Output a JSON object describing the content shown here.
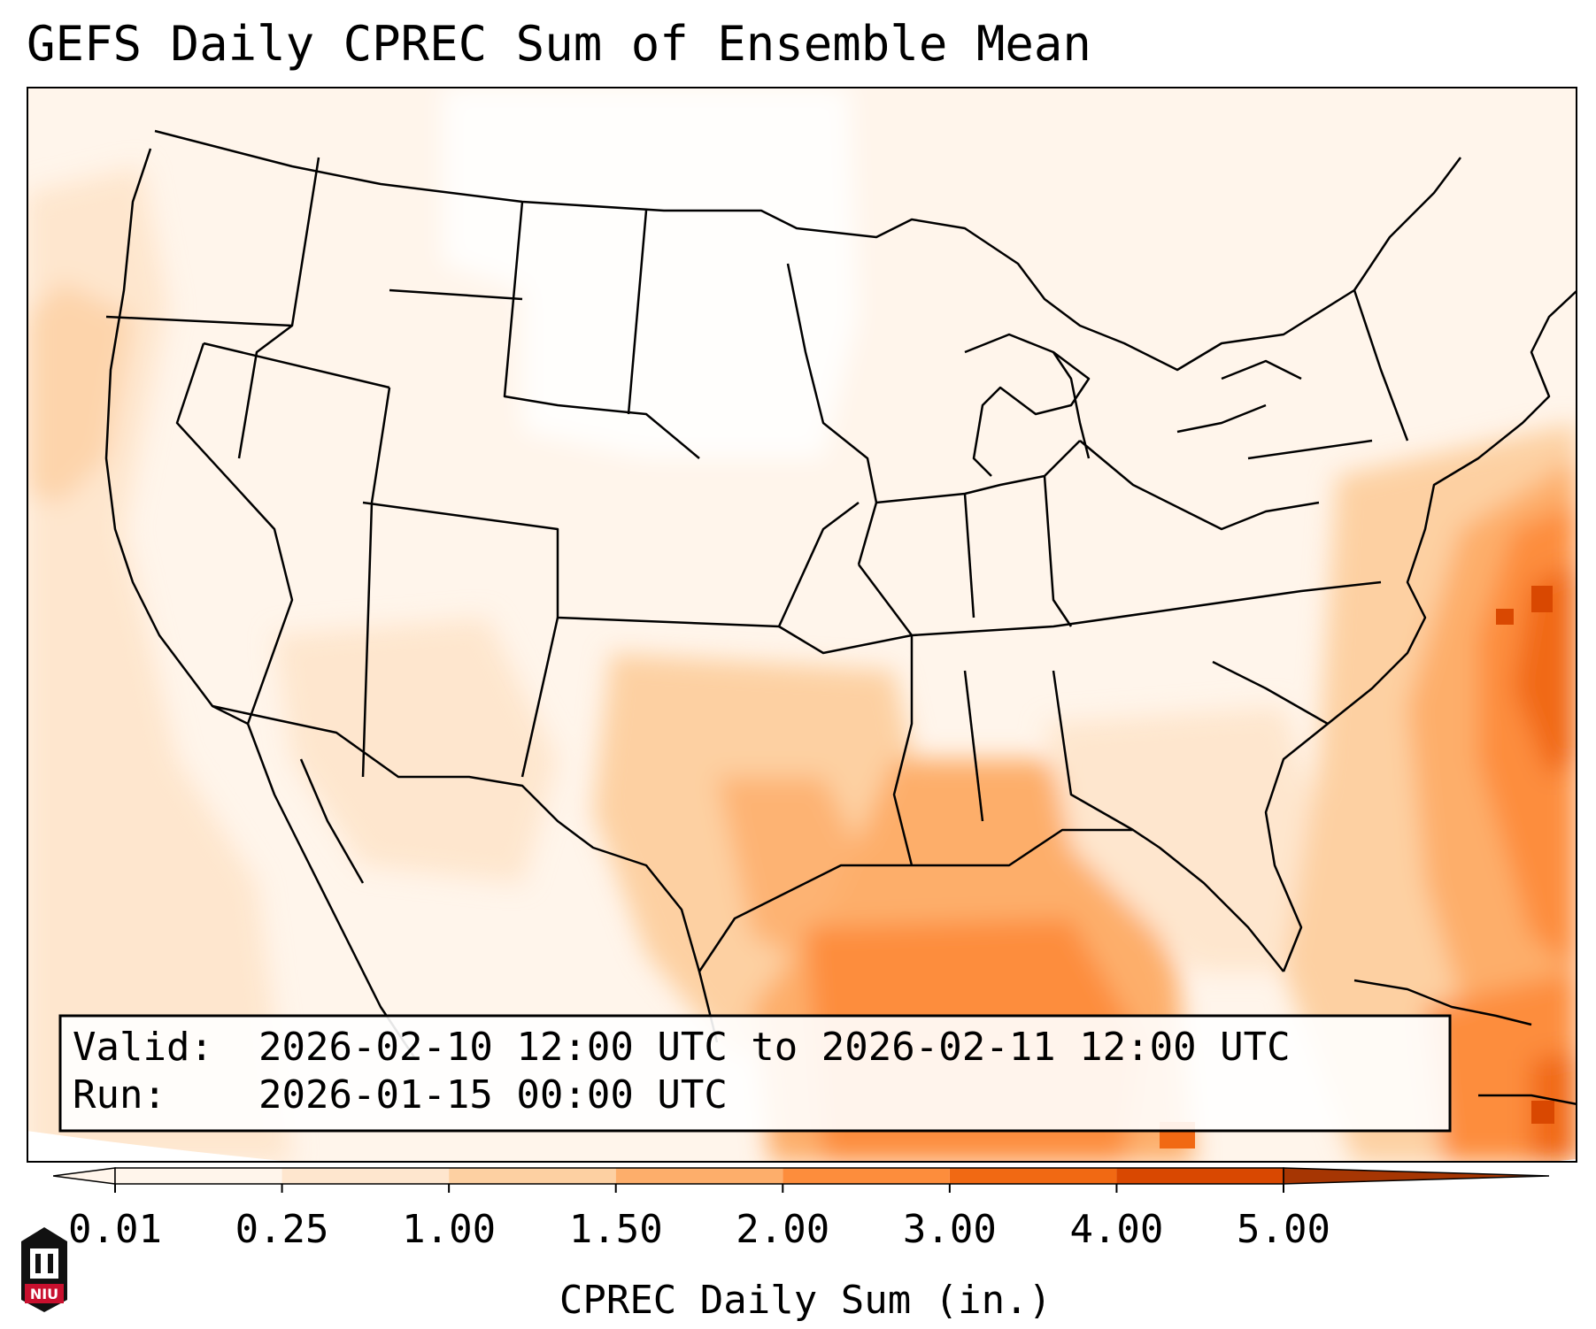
{
  "title": "GEFS Daily CPREC Sum of Ensemble Mean",
  "info_box": {
    "valid_label": "Valid:",
    "valid_value": "2026-02-10 12:00 UTC to 2026-02-11 12:00 UTC",
    "run_label": "Run:",
    "run_value": "2026-01-15 00:00 UTC"
  },
  "colorbar": {
    "label": "CPREC Daily Sum (in.)",
    "ticks": [
      "0.01",
      "0.25",
      "1.00",
      "1.50",
      "2.00",
      "3.00",
      "4.00",
      "5.00"
    ],
    "colors": [
      "#fff5eb",
      "#fee6ce",
      "#fdd0a2",
      "#fdae6b",
      "#fd8d3c",
      "#f16913",
      "#d94801",
      "#a63603"
    ],
    "extend": "both"
  },
  "logo": {
    "text": "NIU"
  }
}
